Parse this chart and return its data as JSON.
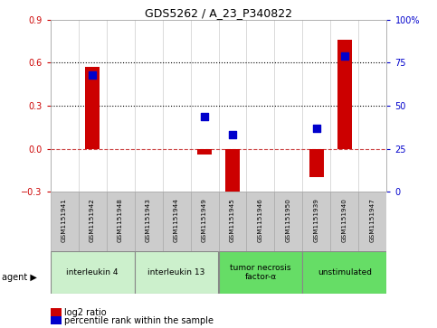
{
  "title": "GDS5262 / A_23_P340822",
  "samples": [
    "GSM1151941",
    "GSM1151942",
    "GSM1151948",
    "GSM1151943",
    "GSM1151944",
    "GSM1151949",
    "GSM1151945",
    "GSM1151946",
    "GSM1151950",
    "GSM1151939",
    "GSM1151940",
    "GSM1151947"
  ],
  "log2_ratio": [
    0.0,
    0.57,
    0.0,
    0.0,
    0.0,
    -0.04,
    -0.32,
    0.0,
    0.0,
    -0.2,
    0.76,
    0.0
  ],
  "percentile_rank": [
    null,
    68,
    null,
    null,
    null,
    44,
    33,
    null,
    null,
    37,
    79,
    null
  ],
  "ylim_left": [
    -0.3,
    0.9
  ],
  "ylim_right": [
    0,
    100
  ],
  "yticks_left": [
    -0.3,
    0.0,
    0.3,
    0.6,
    0.9
  ],
  "yticks_right": [
    0,
    25,
    50,
    75,
    100
  ],
  "dotted_lines_pct": [
    50,
    75
  ],
  "agents": [
    {
      "label": "interleukin 4",
      "start": 0,
      "end": 2,
      "color": "#ccf0cc"
    },
    {
      "label": "interleukin 13",
      "start": 3,
      "end": 5,
      "color": "#ccf0cc"
    },
    {
      "label": "tumor necrosis\nfactor-α",
      "start": 6,
      "end": 8,
      "color": "#66dd66"
    },
    {
      "label": "unstimulated",
      "start": 9,
      "end": 11,
      "color": "#66dd66"
    }
  ],
  "bar_color": "#cc0000",
  "dot_color": "#0000cc",
  "bar_width": 0.5,
  "dot_size": 30,
  "legend_bar_label": "log2 ratio",
  "legend_dot_label": "percentile rank within the sample",
  "agent_label": "agent ▶",
  "axis_left_color": "#cc0000",
  "axis_right_color": "#0000cc",
  "bg_color": "#ffffff",
  "sample_box_color": "#cccccc"
}
